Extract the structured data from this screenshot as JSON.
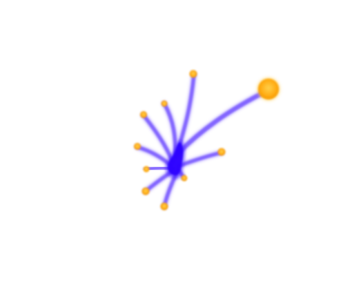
{
  "diagram": {
    "kind": "branching-network",
    "branch_count": 10,
    "colors": {
      "branch": "#7b5cff",
      "hub": "#3a1aff",
      "hub_core": "#2a00ff",
      "node": "#ffa500",
      "node_glow": "#ffcc44",
      "background": "#ffffff"
    },
    "hub": {
      "shape": "blob"
    },
    "nodes": [
      {
        "id": "node-large",
        "size": "large"
      },
      {
        "id": "node-top",
        "size": "small"
      },
      {
        "id": "node-upper-left",
        "size": "small"
      },
      {
        "id": "node-upper-mid",
        "size": "small"
      },
      {
        "id": "node-left-upper",
        "size": "small"
      },
      {
        "id": "node-left-mid",
        "size": "small"
      },
      {
        "id": "node-lower-left",
        "size": "small"
      },
      {
        "id": "node-bottom",
        "size": "small"
      },
      {
        "id": "node-right",
        "size": "small"
      },
      {
        "id": "node-hub-right",
        "size": "small"
      }
    ]
  }
}
